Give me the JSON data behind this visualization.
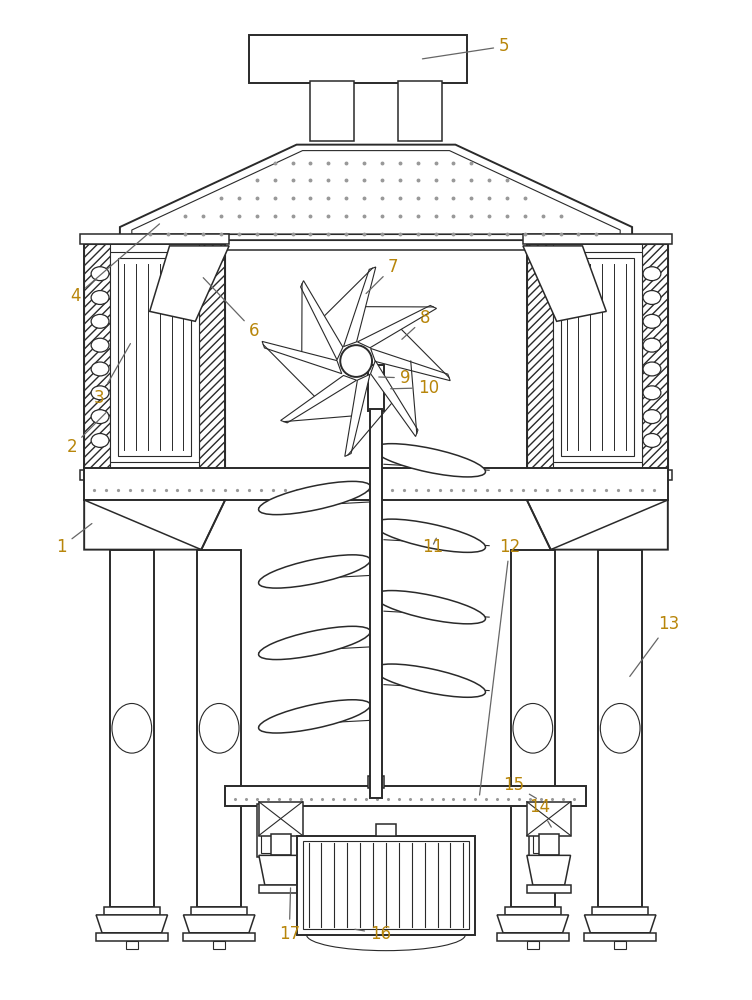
{
  "figure_width": 7.52,
  "figure_height": 10.0,
  "dpi": 100,
  "bg_color": "#ffffff",
  "line_color": "#2a2a2a",
  "label_color": "#b8860b",
  "label_fontsize": 12,
  "lw_main": 1.4,
  "lw_thin": 0.8,
  "lw_med": 1.1
}
